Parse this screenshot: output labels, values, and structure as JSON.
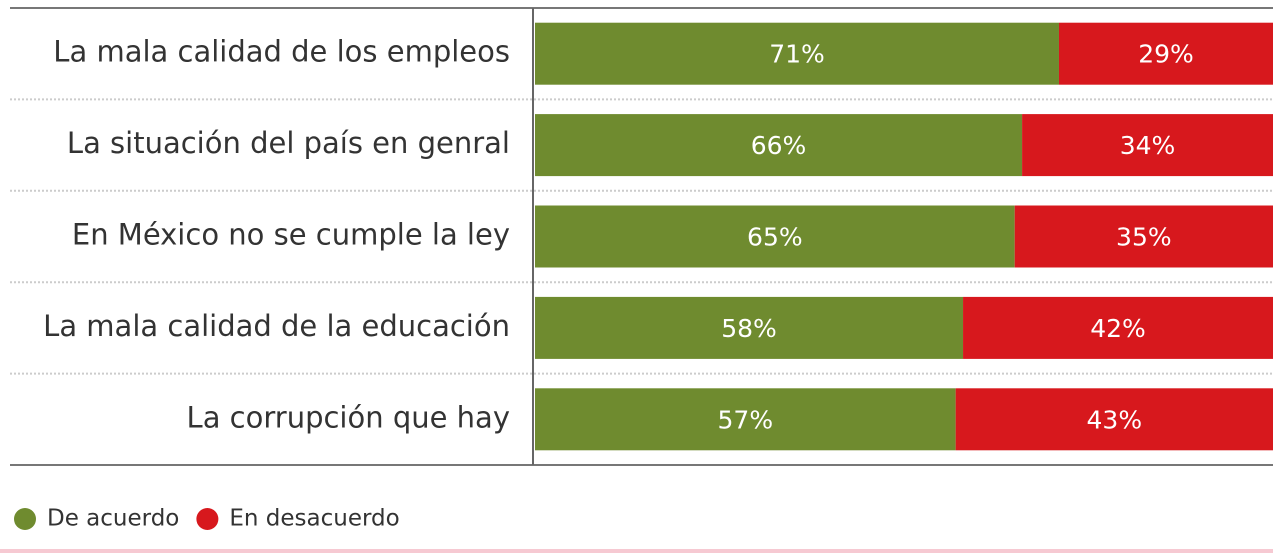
{
  "chart_data": {
    "type": "stacked-bar-horizontal",
    "categories": [
      "La mala calidad de los empleos",
      "La situación del país en genral",
      "En México no se cumple la ley",
      "La mala calidad de la educación",
      "La corrupción que hay"
    ],
    "series": [
      {
        "name": "De acuerdo",
        "color": "#6f8b2f",
        "values": [
          71,
          66,
          65,
          58,
          57
        ],
        "value_labels": [
          "71%",
          "66%",
          "65%",
          "58%",
          "57%"
        ]
      },
      {
        "name": "En desacuerdo",
        "color": "#d7181d",
        "values": [
          29,
          34,
          35,
          42,
          43
        ],
        "value_labels": [
          "29%",
          "34%",
          "35%",
          "42%",
          "43%"
        ]
      }
    ]
  }
}
